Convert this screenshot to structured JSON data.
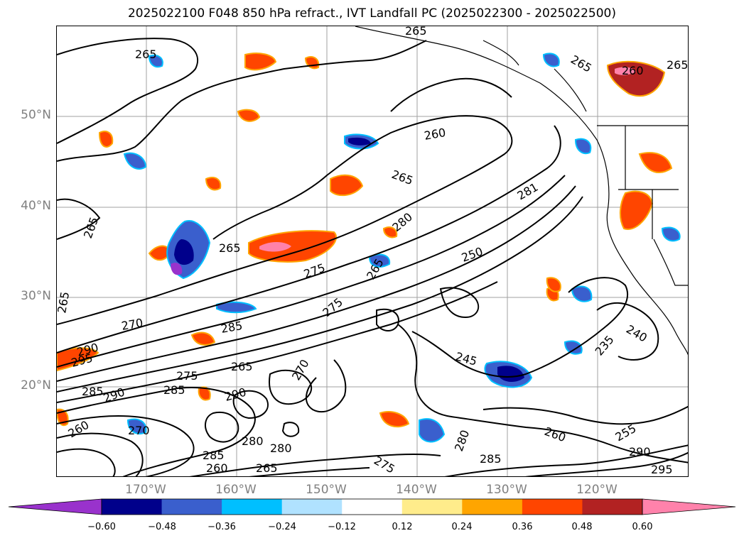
{
  "title": "2025022100 F048 850 hPa refract., IVT Landfall PC (2025022300 - 2025022500)",
  "lat_labels": [
    "50°N",
    "40°N",
    "30°N",
    "20°N"
  ],
  "lon_labels": [
    "170°W",
    "160°W",
    "150°W",
    "140°W",
    "130°W",
    "120°W"
  ],
  "colorbar": {
    "ticks": [
      "−0.60",
      "−0.48",
      "−0.36",
      "−0.24",
      "−0.12",
      "0.12",
      "0.24",
      "0.36",
      "0.48",
      "0.60"
    ],
    "colors": [
      "#9932cc",
      "#00008b",
      "#3a5fcd",
      "#00bfff",
      "#b0e2ff",
      "#ffffff",
      "#ffec8b",
      "#ffa500",
      "#ff4500",
      "#b22222",
      "#ff82ab"
    ]
  },
  "contour_labels": [
    "265",
    "265",
    "265",
    "265",
    "265",
    "260",
    "260",
    "265",
    "265",
    "281",
    "280",
    "265",
    "275",
    "265",
    "250",
    "270",
    "285",
    "290",
    "295",
    "275",
    "270",
    "245",
    "240",
    "235",
    "265",
    "275",
    "285",
    "290",
    "285",
    "290",
    "280",
    "285",
    "260",
    "255",
    "290",
    "295",
    "275",
    "285",
    "265",
    "280",
    "260",
    "260",
    "270",
    "280"
  ],
  "colors": {
    "contour": "#000000",
    "coast": "#000000",
    "grid": "#a0a0a0",
    "label_gray": "#808080"
  }
}
